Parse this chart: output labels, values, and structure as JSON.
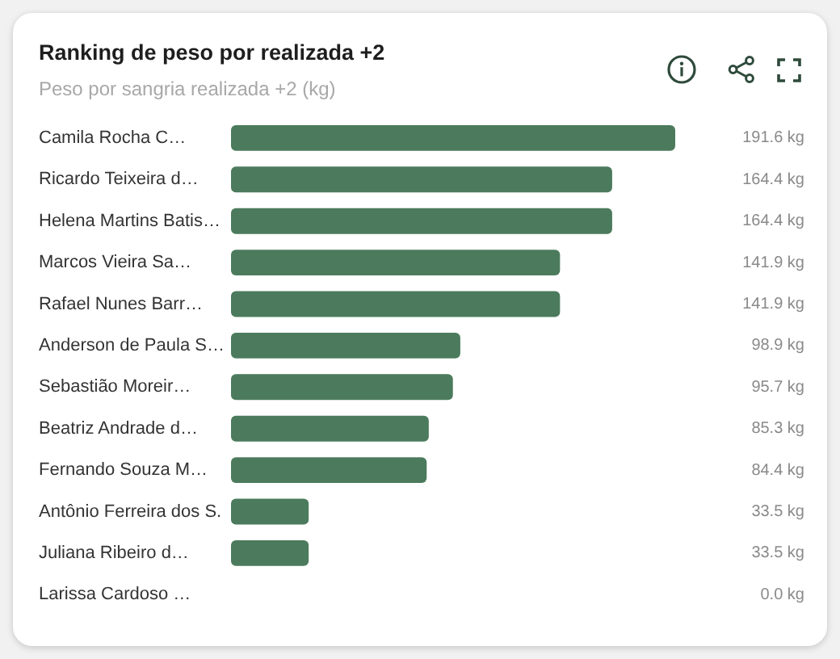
{
  "chart_data": {
    "type": "bar",
    "orientation": "horizontal",
    "title": "Ranking de peso por realizada +2",
    "subtitle": "Peso por sangria realizada +2 (kg)",
    "categories": [
      "Camila Rocha C…",
      "Ricardo Teixeira d…",
      "Helena Martins Batis…",
      "Marcos Vieira Sa…",
      "Rafael Nunes Barr…",
      "Anderson de Paula S…",
      "Sebastião Moreir…",
      "Beatriz Andrade d…",
      "Fernando Souza M…",
      "Antônio Ferreira dos S.",
      "Juliana Ribeiro d…",
      "Larissa Cardoso …"
    ],
    "values": [
      191.6,
      164.4,
      164.4,
      141.9,
      141.9,
      98.9,
      95.7,
      85.3,
      84.4,
      33.5,
      33.5,
      0.0
    ],
    "color": "#4b7b5c",
    "value_labels": [
      "191.6 kg",
      "164.4 kg",
      "164.4 kg",
      "141.9 kg",
      "141.9 kg",
      "98.9 kg",
      "95.7 kg",
      "85.3 kg",
      "84.4 kg",
      "33.5 kg",
      "33.5 kg",
      "0.0 kg"
    ],
    "tick_labels": "y"
  }
}
